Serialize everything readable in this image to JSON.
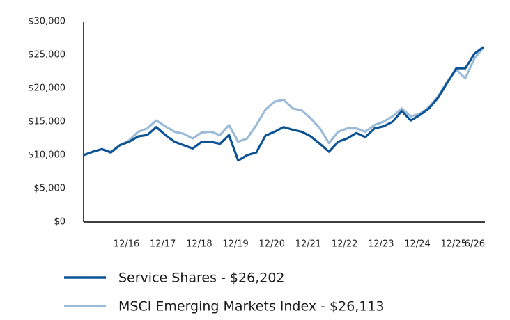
{
  "chart_data": {
    "type": "line",
    "categories": [
      null,
      null,
      null,
      null,
      null,
      null,
      "12/16",
      null,
      null,
      null,
      "12/17",
      null,
      null,
      null,
      "12/18",
      null,
      null,
      null,
      "12/19",
      null,
      null,
      null,
      "12/20",
      null,
      null,
      null,
      "12/21",
      null,
      null,
      null,
      "12/22",
      null,
      null,
      null,
      "12/23",
      null,
      null,
      null,
      "12/24",
      null,
      null,
      null,
      "12/25",
      null,
      "6/26"
    ],
    "series": [
      {
        "name": "Service Shares - $26,202",
        "color": "#0b5394",
        "values": [
          10000,
          10500,
          10900,
          10400,
          11500,
          12000,
          12800,
          13000,
          14200,
          13000,
          12000,
          11500,
          11000,
          12000,
          12000,
          11700,
          13000,
          9200,
          10000,
          10400,
          12900,
          13500,
          14200,
          13800,
          13500,
          12800,
          11700,
          10500,
          12000,
          12500,
          13300,
          12700,
          14000,
          14300,
          15000,
          16600,
          15200,
          16000,
          17000,
          18600,
          20800,
          23000,
          23000,
          25200,
          26202
        ]
      },
      {
        "name": "MSCI Emerging Markets Index - $26,113",
        "color": "#9bbad8",
        "values": [
          10000,
          10500,
          10900,
          10500,
          11500,
          12200,
          13500,
          14000,
          15200,
          14300,
          13500,
          13200,
          12500,
          13400,
          13500,
          13000,
          14500,
          12000,
          12500,
          14500,
          16800,
          18000,
          18300,
          17000,
          16700,
          15500,
          14000,
          11800,
          13500,
          14000,
          14000,
          13500,
          14500,
          15000,
          15800,
          17000,
          15800,
          16200,
          17200,
          18800,
          21000,
          22800,
          21500,
          24500,
          26113
        ]
      }
    ],
    "ylim": [
      0,
      30000
    ],
    "yticks": [
      {
        "value": 0,
        "label": "$0"
      },
      {
        "value": 5000,
        "label": "$5,000"
      },
      {
        "value": 10000,
        "label": "$10,000"
      },
      {
        "value": 15000,
        "label": "$15,000"
      },
      {
        "value": 20000,
        "label": "$20,000"
      },
      {
        "value": 25000,
        "label": "$25,000"
      },
      {
        "value": 30000,
        "label": "$30,000"
      }
    ]
  }
}
